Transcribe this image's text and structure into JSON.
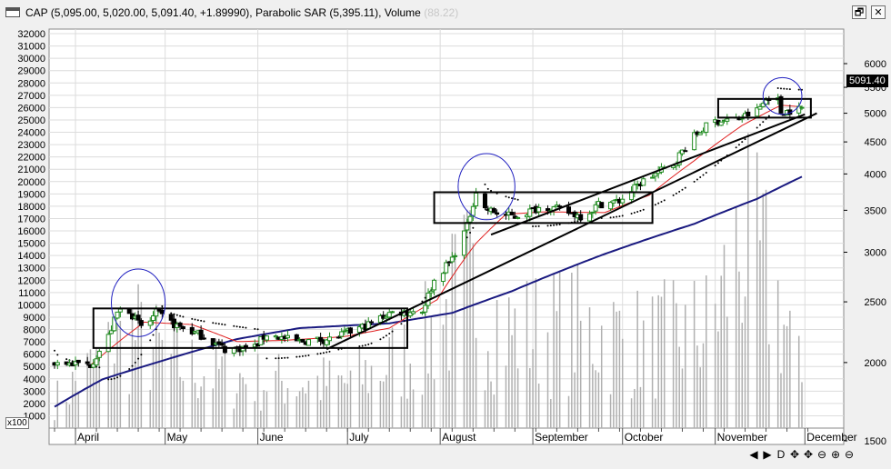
{
  "window": {
    "title_main": "CAP (5,095.00, 5,020.00, 5,091.40, +1.89990), Parabolic SAR (5,395.11), Volume",
    "title_ghost": "(88.22)",
    "restore_glyph": "🗗",
    "close_glyph": "✕"
  },
  "colors": {
    "frame_bg": "#f0f0f0",
    "plot_bg": "#ffffff",
    "grid": "#dcdcdc",
    "candle_up": "#1f8a1f",
    "candle_down": "#000000",
    "volume": "#b0b0b0",
    "ma_short": "#e02020",
    "ma_long": "#1a1a80",
    "sar": "#000000",
    "trendline": "#000000",
    "box": "#000000",
    "ellipse": "#2020c0"
  },
  "scale_label": "x100",
  "last_price_label": "5091.40",
  "nav_buttons": [
    "◀",
    "▶",
    "D",
    "✥",
    "✥",
    "⊖",
    "⊕",
    "⊖"
  ],
  "chart_data": {
    "type": "candlestick",
    "symbol": "CAP",
    "left_axis": {
      "label": "",
      "ticks": [
        32000,
        31000,
        30000,
        29000,
        28000,
        27000,
        26000,
        25000,
        24000,
        23000,
        22000,
        21000,
        20000,
        19000,
        18000,
        17000,
        16000,
        15000,
        14000,
        13000,
        12000,
        11000,
        10000,
        9000,
        8000,
        7000,
        6000,
        5000,
        4000,
        3000,
        2000,
        1000
      ],
      "range": [
        0,
        32600
      ]
    },
    "right_axis": {
      "label": "",
      "ticks": [
        6000,
        5500,
        5000,
        4500,
        4000,
        3500,
        3000,
        2500,
        2000,
        1500
      ],
      "scale": "log",
      "range": [
        1450,
        6300
      ]
    },
    "x_labels": [
      "April",
      "May",
      "June",
      "July",
      "August",
      "September",
      "October",
      "November",
      "December"
    ],
    "x_label_dates": [
      "2021-04-01",
      "2021-05-01",
      "2021-06-01",
      "2021-07-01",
      "2021-08-01",
      "2021-09-01",
      "2021-10-01",
      "2021-11-01",
      "2021-12-01"
    ],
    "date_range": [
      "2021-03-25",
      "2021-11-30"
    ],
    "price_anchors": [
      [
        "2021-03-25",
        2000
      ],
      [
        "2021-04-06",
        1985
      ],
      [
        "2021-04-08",
        2050
      ],
      [
        "2021-04-12",
        2200
      ],
      [
        "2021-04-15",
        2400
      ],
      [
        "2021-04-18",
        2470
      ],
      [
        "2021-04-21",
        2340
      ],
      [
        "2021-04-24",
        2260
      ],
      [
        "2021-04-28",
        2400
      ],
      [
        "2021-05-04",
        2300
      ],
      [
        "2021-05-14",
        2200
      ],
      [
        "2021-05-21",
        2100
      ],
      [
        "2021-05-31",
        2120
      ],
      [
        "2021-06-04",
        2220
      ],
      [
        "2021-06-14",
        2160
      ],
      [
        "2021-06-25",
        2180
      ],
      [
        "2021-07-02",
        2240
      ],
      [
        "2021-07-08",
        2300
      ],
      [
        "2021-07-15",
        2400
      ],
      [
        "2021-07-26",
        2420
      ],
      [
        "2021-07-30",
        2700
      ],
      [
        "2021-08-05",
        2930
      ],
      [
        "2021-08-10",
        3300
      ],
      [
        "2021-08-13",
        3750
      ],
      [
        "2021-08-16",
        3520
      ],
      [
        "2021-08-21",
        3450
      ],
      [
        "2021-08-26",
        3420
      ],
      [
        "2021-09-05",
        3560
      ],
      [
        "2021-09-13",
        3470
      ],
      [
        "2021-09-18",
        3420
      ],
      [
        "2021-09-23",
        3580
      ],
      [
        "2021-09-30",
        3620
      ],
      [
        "2021-10-08",
        3900
      ],
      [
        "2021-10-18",
        4150
      ],
      [
        "2021-10-24",
        4550
      ],
      [
        "2021-10-31",
        4850
      ],
      [
        "2021-11-09",
        4900
      ],
      [
        "2021-11-15",
        5050
      ],
      [
        "2021-11-21",
        5450
      ],
      [
        "2021-11-23",
        5020
      ],
      [
        "2021-11-30",
        5091
      ]
    ],
    "ma_short_anchors": [
      [
        "2021-04-06",
        1980
      ],
      [
        "2021-04-15",
        2150
      ],
      [
        "2021-04-24",
        2320
      ],
      [
        "2021-05-10",
        2300
      ],
      [
        "2021-05-25",
        2160
      ],
      [
        "2021-06-10",
        2170
      ],
      [
        "2021-06-30",
        2200
      ],
      [
        "2021-07-15",
        2270
      ],
      [
        "2021-07-31",
        2520
      ],
      [
        "2021-08-13",
        3100
      ],
      [
        "2021-08-23",
        3450
      ],
      [
        "2021-09-05",
        3480
      ],
      [
        "2021-09-25",
        3470
      ],
      [
        "2021-10-10",
        3700
      ],
      [
        "2021-10-25",
        4200
      ],
      [
        "2021-11-10",
        4780
      ],
      [
        "2021-11-23",
        5150
      ],
      [
        "2021-11-30",
        5120
      ]
    ],
    "ma_long_anchors": [
      [
        "2021-03-25",
        1700
      ],
      [
        "2021-04-10",
        1880
      ],
      [
        "2021-05-01",
        2020
      ],
      [
        "2021-05-25",
        2180
      ],
      [
        "2021-06-15",
        2270
      ],
      [
        "2021-07-15",
        2310
      ],
      [
        "2021-08-05",
        2400
      ],
      [
        "2021-08-25",
        2600
      ],
      [
        "2021-09-25",
        2980
      ],
      [
        "2021-10-25",
        3330
      ],
      [
        "2021-11-15",
        3650
      ],
      [
        "2021-11-30",
        3960
      ]
    ],
    "sar_segments": [
      {
        "start": "2021-03-25",
        "end": "2021-04-10",
        "y_from": 2090,
        "y_to": 1960
      },
      {
        "start": "2021-04-12",
        "end": "2021-04-28",
        "y_from": 1880,
        "y_to": 2260
      },
      {
        "start": "2021-04-30",
        "end": "2021-06-01",
        "y_from": 2460,
        "y_to": 2260
      },
      {
        "start": "2021-06-04",
        "end": "2021-06-30",
        "y_from": 2030,
        "y_to": 2110
      },
      {
        "start": "2021-07-03",
        "end": "2021-08-14",
        "y_from": 2120,
        "y_to": 3400
      },
      {
        "start": "2021-08-16",
        "end": "2021-08-29",
        "y_from": 3850,
        "y_to": 3620
      },
      {
        "start": "2021-09-01",
        "end": "2021-09-20",
        "y_from": 3300,
        "y_to": 3400
      },
      {
        "start": "2021-09-23",
        "end": "2021-11-19",
        "y_from": 3400,
        "y_to": 4950
      },
      {
        "start": "2021-11-21",
        "end": "2021-11-30",
        "y_from": 5500,
        "y_to": 5450
      }
    ],
    "volume_profile": [
      [
        "2021-03-25",
        2600
      ],
      [
        "2021-04-10",
        6500
      ],
      [
        "2021-04-20",
        9000
      ],
      [
        "2021-05-05",
        6000
      ],
      [
        "2021-06-01",
        4500
      ],
      [
        "2021-07-01",
        4200
      ],
      [
        "2021-07-25",
        7500
      ],
      [
        "2021-08-10",
        13500
      ],
      [
        "2021-08-25",
        9000
      ],
      [
        "2021-09-15",
        9500
      ],
      [
        "2021-10-10",
        8000
      ],
      [
        "2021-10-30",
        9500
      ],
      [
        "2021-11-10",
        17500
      ],
      [
        "2021-11-20",
        13500
      ],
      [
        "2021-11-30",
        4500
      ]
    ],
    "trendlines": [
      {
        "from": [
          "2021-06-24",
          2100
        ],
        "to": [
          "2021-12-05",
          5000
        ]
      },
      {
        "from": [
          "2021-08-18",
          3200
        ],
        "to": [
          "2021-12-01",
          4980
        ]
      }
    ],
    "boxes": [
      {
        "x": [
          "2021-04-07",
          "2021-07-21"
        ],
        "y": [
          2110,
          2440
        ]
      },
      {
        "x": [
          "2021-07-30",
          "2021-10-11"
        ],
        "y": [
          3340,
          3740
        ]
      },
      {
        "x": [
          "2021-11-02",
          "2021-12-03"
        ],
        "y": [
          4920,
          5270
        ]
      }
    ],
    "ellipses": [
      {
        "x": [
          "2021-04-13",
          "2021-05-01"
        ],
        "y": [
          2200,
          2820
        ]
      },
      {
        "x": [
          "2021-08-07",
          "2021-08-26"
        ],
        "y": [
          3380,
          4310
        ]
      },
      {
        "x": [
          "2021-11-17",
          "2021-11-30"
        ],
        "y": [
          4980,
          5700
        ]
      }
    ],
    "grid": true,
    "legend": "none"
  }
}
